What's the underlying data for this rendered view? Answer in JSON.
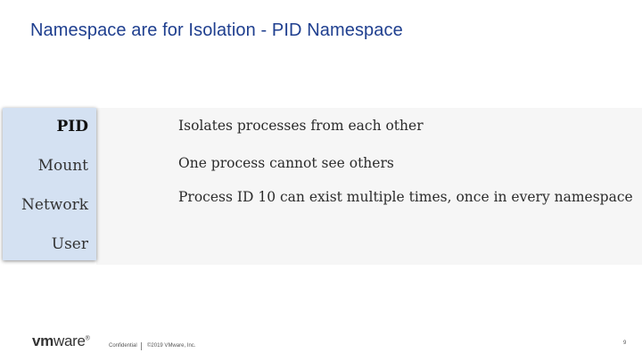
{
  "slide": {
    "title": "Namespace are for Isolation - PID Namespace"
  },
  "namespaces": {
    "items": [
      "PID",
      "Mount",
      "Network",
      "User"
    ],
    "active": "PID"
  },
  "description": {
    "lines": [
      "Isolates processes from each other",
      "One process cannot see others",
      "Process ID 10 can exist multiple times, once in every namespace"
    ]
  },
  "footer": {
    "logo_vm": "vm",
    "logo_ware": "ware",
    "logo_reg": "®",
    "confidential": "Confidential",
    "copyright": "©2019 VMware, Inc.",
    "page_number": "9"
  },
  "colors": {
    "title": "#1f3f8f",
    "sidebar_bg": "#d4e1f2",
    "panel_bg": "#f6f6f6"
  }
}
